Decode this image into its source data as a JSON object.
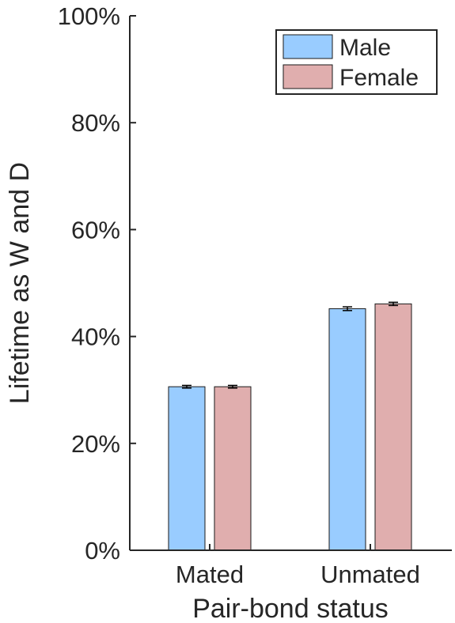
{
  "chart_data": {
    "type": "bar",
    "categories": [
      "Mated",
      "Unmated"
    ],
    "series": [
      {
        "name": "Male",
        "values": [
          30.6,
          45.2
        ],
        "errors": [
          0.25,
          0.35
        ],
        "color": "#99ccff"
      },
      {
        "name": "Female",
        "values": [
          30.6,
          46.1
        ],
        "errors": [
          0.25,
          0.3
        ],
        "color": "#e0aeae"
      }
    ],
    "xlabel": "Pair-bond status",
    "ylabel": "Lifetime as W and D",
    "ylim": [
      0,
      100
    ],
    "yticks": [
      0,
      20,
      40,
      60,
      80,
      100
    ],
    "ytick_labels": [
      "0%",
      "20%",
      "40%",
      "60%",
      "80%",
      "100%"
    ],
    "legend": {
      "placement": "top-right"
    },
    "grid": false
  }
}
